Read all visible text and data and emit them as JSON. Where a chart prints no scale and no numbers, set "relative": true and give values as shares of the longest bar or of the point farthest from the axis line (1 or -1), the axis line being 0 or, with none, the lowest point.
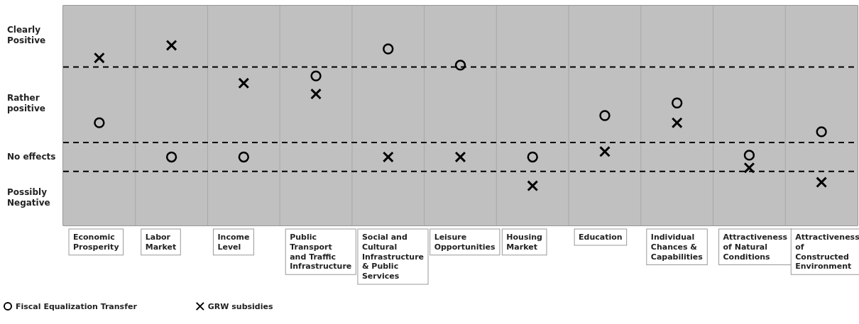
{
  "chart_data": {
    "type": "scatter",
    "relative": true,
    "categories": [
      "Economic Prosperity",
      "Labor Market",
      "Income Level",
      "Public Transport and Traffic Infrastructure",
      "Social and Cultural Infrastructure & Public Services",
      "Leisure Opportunities",
      "Housing Market",
      "Education",
      "Individual Chances & Capabilities",
      "Attractiveness of Natural Conditions",
      "Attractiveness of Constructed Environment"
    ],
    "series": [
      {
        "name": "Fiscal Equalization Transfer",
        "color": "#000000",
        "marker": "circle",
        "values": [
          0.57,
          0.38,
          0.38,
          0.83,
          0.98,
          0.89,
          0.38,
          0.61,
          0.68,
          0.39,
          0.52
        ]
      },
      {
        "name": "GRW subsidies",
        "color": "#000000",
        "marker": "cross",
        "values": [
          0.93,
          1,
          0.79,
          0.73,
          0.38,
          0.38,
          0.22,
          0.41,
          0.57,
          0.32,
          0.24
        ]
      }
    ],
    "bands": [
      {
        "axis": "y",
        "from": 0.88,
        "to": 1.22,
        "label": "Clearly Positive",
        "color": "#c0c0c0"
      },
      {
        "axis": "y",
        "from": 0.46,
        "to": 0.88,
        "label": "Rather positive",
        "color": "#c0c0c0"
      },
      {
        "axis": "y",
        "from": 0.3,
        "to": 0.46,
        "label": "No effects",
        "color": "#c0c0c0"
      },
      {
        "axis": "y",
        "from": 0,
        "to": 0.3,
        "label": "Possibly Negative",
        "color": "#c0c0c0"
      }
    ],
    "ref_lines": [
      {
        "axis": "y",
        "value": 0.88,
        "line_style": "dashed",
        "color": "#000000"
      },
      {
        "axis": "y",
        "value": 0.46,
        "line_style": "dashed",
        "color": "#000000"
      },
      {
        "axis": "y",
        "value": 0.3,
        "line_style": "dashed",
        "color": "#000000"
      }
    ],
    "grid": "x",
    "legend": "bottom left"
  }
}
